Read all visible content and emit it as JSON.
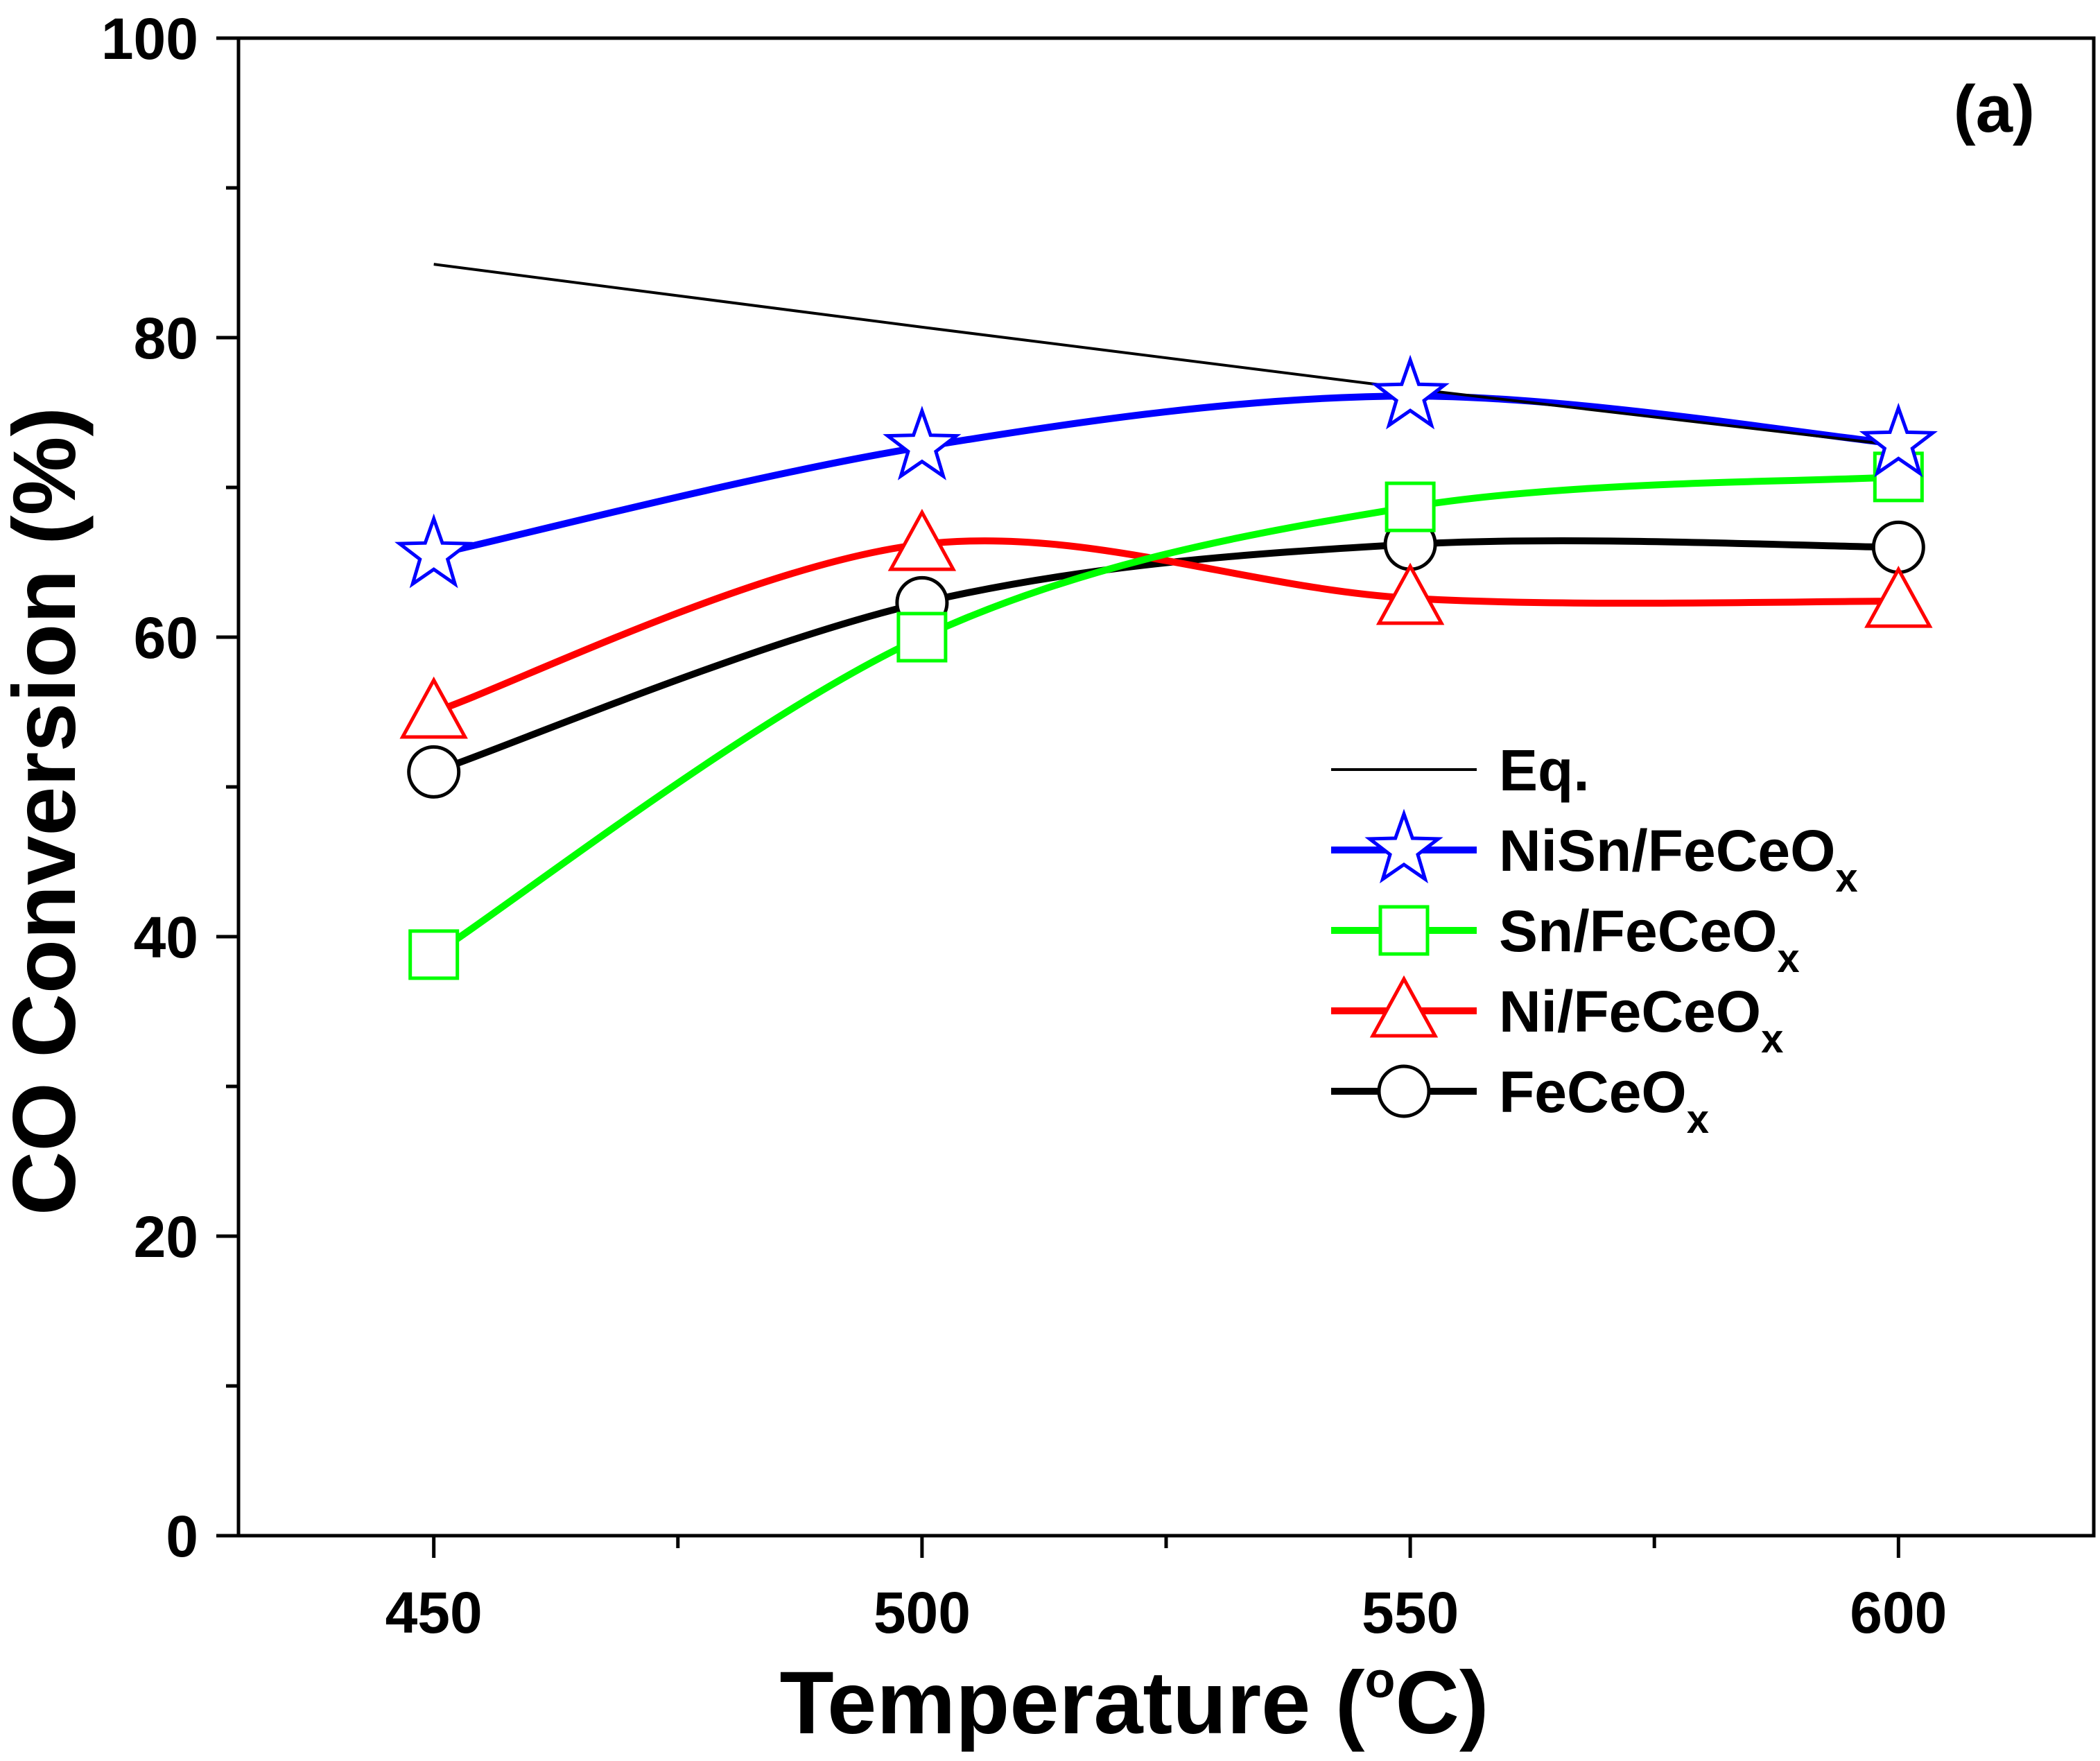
{
  "chart_data": {
    "type": "line",
    "panel_label": "(a)",
    "xlabel": "Temperature (",
    "xlabel_sup": "o",
    "xlabel_tail": "C)",
    "ylabel": "CO Conversion (%)",
    "xlim": [
      430,
      620
    ],
    "ylim": [
      0,
      100
    ],
    "x_ticks": [
      450,
      500,
      550,
      600
    ],
    "x_minor_ticks": [
      475,
      525,
      575
    ],
    "y_ticks": [
      0,
      20,
      40,
      60,
      80,
      100
    ],
    "y_minor_ticks": [
      10,
      30,
      50,
      70,
      90
    ],
    "x_tick_labels": [
      "450",
      "500",
      "550",
      "600"
    ],
    "y_tick_labels": [
      "0",
      "20",
      "40",
      "60",
      "80",
      "100"
    ],
    "legend_position": "right-middle",
    "series": [
      {
        "name": "Eq.",
        "label_main": "Eq.",
        "label_sub": "",
        "color": "#000000",
        "marker": "none",
        "x": [
          450,
          500,
          550,
          600
        ],
        "values": [
          84.9,
          80.7,
          76.6,
          72.8
        ]
      },
      {
        "name": "NiSn/FeCeOx",
        "label_main": "NiSn/FeCeO",
        "label_sub": "x",
        "color": "#0000ff",
        "marker": "star",
        "x": [
          450,
          500,
          550,
          600
        ],
        "values": [
          65.5,
          72.7,
          76.1,
          72.9
        ]
      },
      {
        "name": "Sn/FeCeOx",
        "label_main": "Sn/FeCeO",
        "label_sub": "x",
        "color": "#00ff00",
        "marker": "square",
        "x": [
          450,
          500,
          550,
          600
        ],
        "values": [
          38.8,
          60.0,
          68.7,
          70.7
        ]
      },
      {
        "name": "Ni/FeCeOx",
        "label_main": "Ni/FeCeO",
        "label_sub": "x",
        "color": "#ff0000",
        "marker": "triangle",
        "x": [
          450,
          500,
          550,
          600
        ],
        "values": [
          55.0,
          66.2,
          62.6,
          62.4
        ]
      },
      {
        "name": "FeCeOx",
        "label_main": "FeCeO",
        "label_sub": "x",
        "color": "#000000",
        "marker": "circle",
        "x": [
          450,
          500,
          550,
          600
        ],
        "values": [
          51.0,
          62.3,
          66.2,
          66.0
        ]
      }
    ]
  }
}
